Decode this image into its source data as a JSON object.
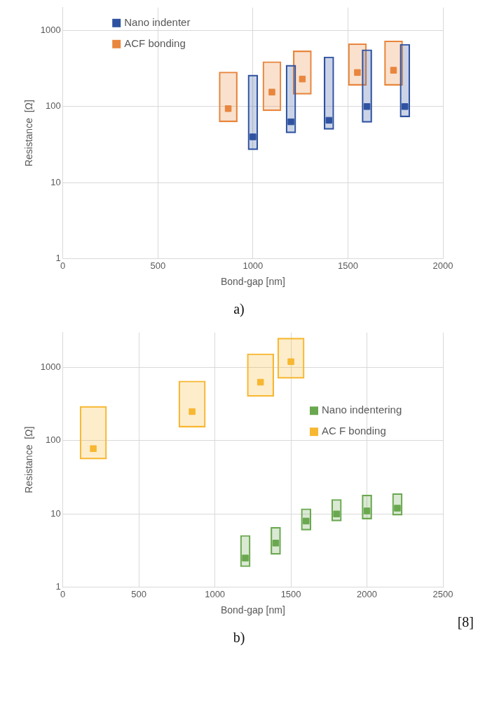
{
  "chart_data": [
    {
      "type": "scatter",
      "xlabel": "Bond-gap [nm]",
      "ylabel": "Resistance  [Ω]",
      "log": "y",
      "grid": true,
      "legend": "top left",
      "marker": "square",
      "xlim": [
        0,
        2000
      ],
      "xticks": [
        0,
        500,
        1000,
        1500,
        2000
      ],
      "ylim": [
        1,
        2000
      ],
      "yticks": [
        1,
        10,
        100,
        1000
      ],
      "annotations": [
        "a)"
      ],
      "series": [
        {
          "type": "bar",
          "color": "#2f52a0",
          "x": [
            1000,
            1200,
            1400,
            1600,
            1800
          ],
          "base": [
            27,
            45,
            50,
            62,
            73
          ],
          "values": [
            233,
            305,
            400,
            498,
            587
          ]
        },
        {
          "type": "bar",
          "color": "#e8863d",
          "x": [
            870,
            1100,
            1260,
            1550,
            1740
          ],
          "base": [
            63,
            88,
            145,
            190,
            190
          ],
          "values": [
            222,
            302,
            395,
            480,
            540
          ]
        },
        {
          "name": "Nano indenter",
          "color": "#2f52a0",
          "x": [
            1000,
            1200,
            1400,
            1600,
            1800
          ],
          "values": [
            40,
            63,
            66,
            100,
            100
          ]
        },
        {
          "name": "ACF bonding",
          "color": "#e8863d",
          "x": [
            870,
            1100,
            1260,
            1550,
            1740
          ],
          "values": [
            94,
            155,
            230,
            280,
            300
          ]
        }
      ]
    },
    {
      "type": "scatter",
      "xlabel": "Bond-gap [nm]",
      "ylabel": "Resistance  [Ω]",
      "log": "y",
      "grid": true,
      "legend": "right",
      "marker": "square",
      "xlim": [
        0,
        2500
      ],
      "xticks": [
        0,
        500,
        1000,
        1500,
        2000,
        2500
      ],
      "ylim": [
        1,
        3000
      ],
      "yticks": [
        1,
        10,
        100,
        1000
      ],
      "annotations": [
        "[8]",
        "b)"
      ],
      "series": [
        {
          "type": "bar",
          "color": "#6aa84f",
          "x": [
            1200,
            1400,
            1600,
            1800,
            2000,
            2200
          ],
          "base": [
            1.9,
            2.8,
            6,
            8,
            8.5,
            9.6
          ],
          "values": [
            3.2,
            3.8,
            5.8,
            7.8,
            9.7,
            9.4
          ]
        },
        {
          "type": "bar",
          "color": "#f7b731",
          "x": [
            200,
            850,
            1300,
            1500
          ],
          "base": [
            56,
            153,
            403,
            710
          ],
          "values": [
            239,
            502,
            1137,
            1810
          ]
        },
        {
          "name": "Nano indentering",
          "color": "#6aa84f",
          "x": [
            1200,
            1400,
            1600,
            1800,
            2000,
            2200
          ],
          "values": [
            2.5,
            4,
            8,
            10,
            11,
            12
          ]
        },
        {
          "name": "AC F bonding",
          "color": "#f7b731",
          "x": [
            200,
            850,
            1300,
            1500
          ],
          "values": [
            78,
            250,
            630,
            1200
          ]
        }
      ]
    }
  ]
}
